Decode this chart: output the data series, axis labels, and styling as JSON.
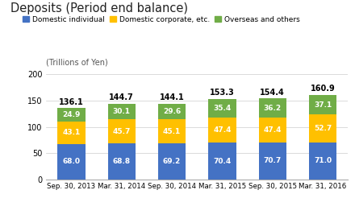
{
  "title": "Deposits (Period end balance)",
  "ylabel": "(Trillions of Yen)",
  "categories": [
    "Sep. 30, 2013",
    "Mar. 31, 2014",
    "Sep. 30, 2014",
    "Mar. 31, 2015",
    "Sep. 30, 2015",
    "Mar. 31, 2016"
  ],
  "domestic_individual": [
    68.0,
    68.8,
    69.2,
    70.4,
    70.7,
    71.0
  ],
  "domestic_corporate": [
    43.1,
    45.7,
    45.1,
    47.4,
    47.4,
    52.7
  ],
  "overseas_others": [
    24.9,
    30.1,
    29.6,
    35.4,
    36.2,
    37.1
  ],
  "totals": [
    136.1,
    144.7,
    144.1,
    153.3,
    154.4,
    160.9
  ],
  "color_individual": "#4472c4",
  "color_corporate": "#ffc000",
  "color_overseas": "#70ad47",
  "legend_labels": [
    "Domestic individual",
    "Domestic corporate, etc.",
    "Overseas and others"
  ],
  "ylim": [
    0,
    200
  ],
  "yticks": [
    0,
    50,
    100,
    150,
    200
  ],
  "background_color": "#ffffff",
  "bar_width": 0.55
}
